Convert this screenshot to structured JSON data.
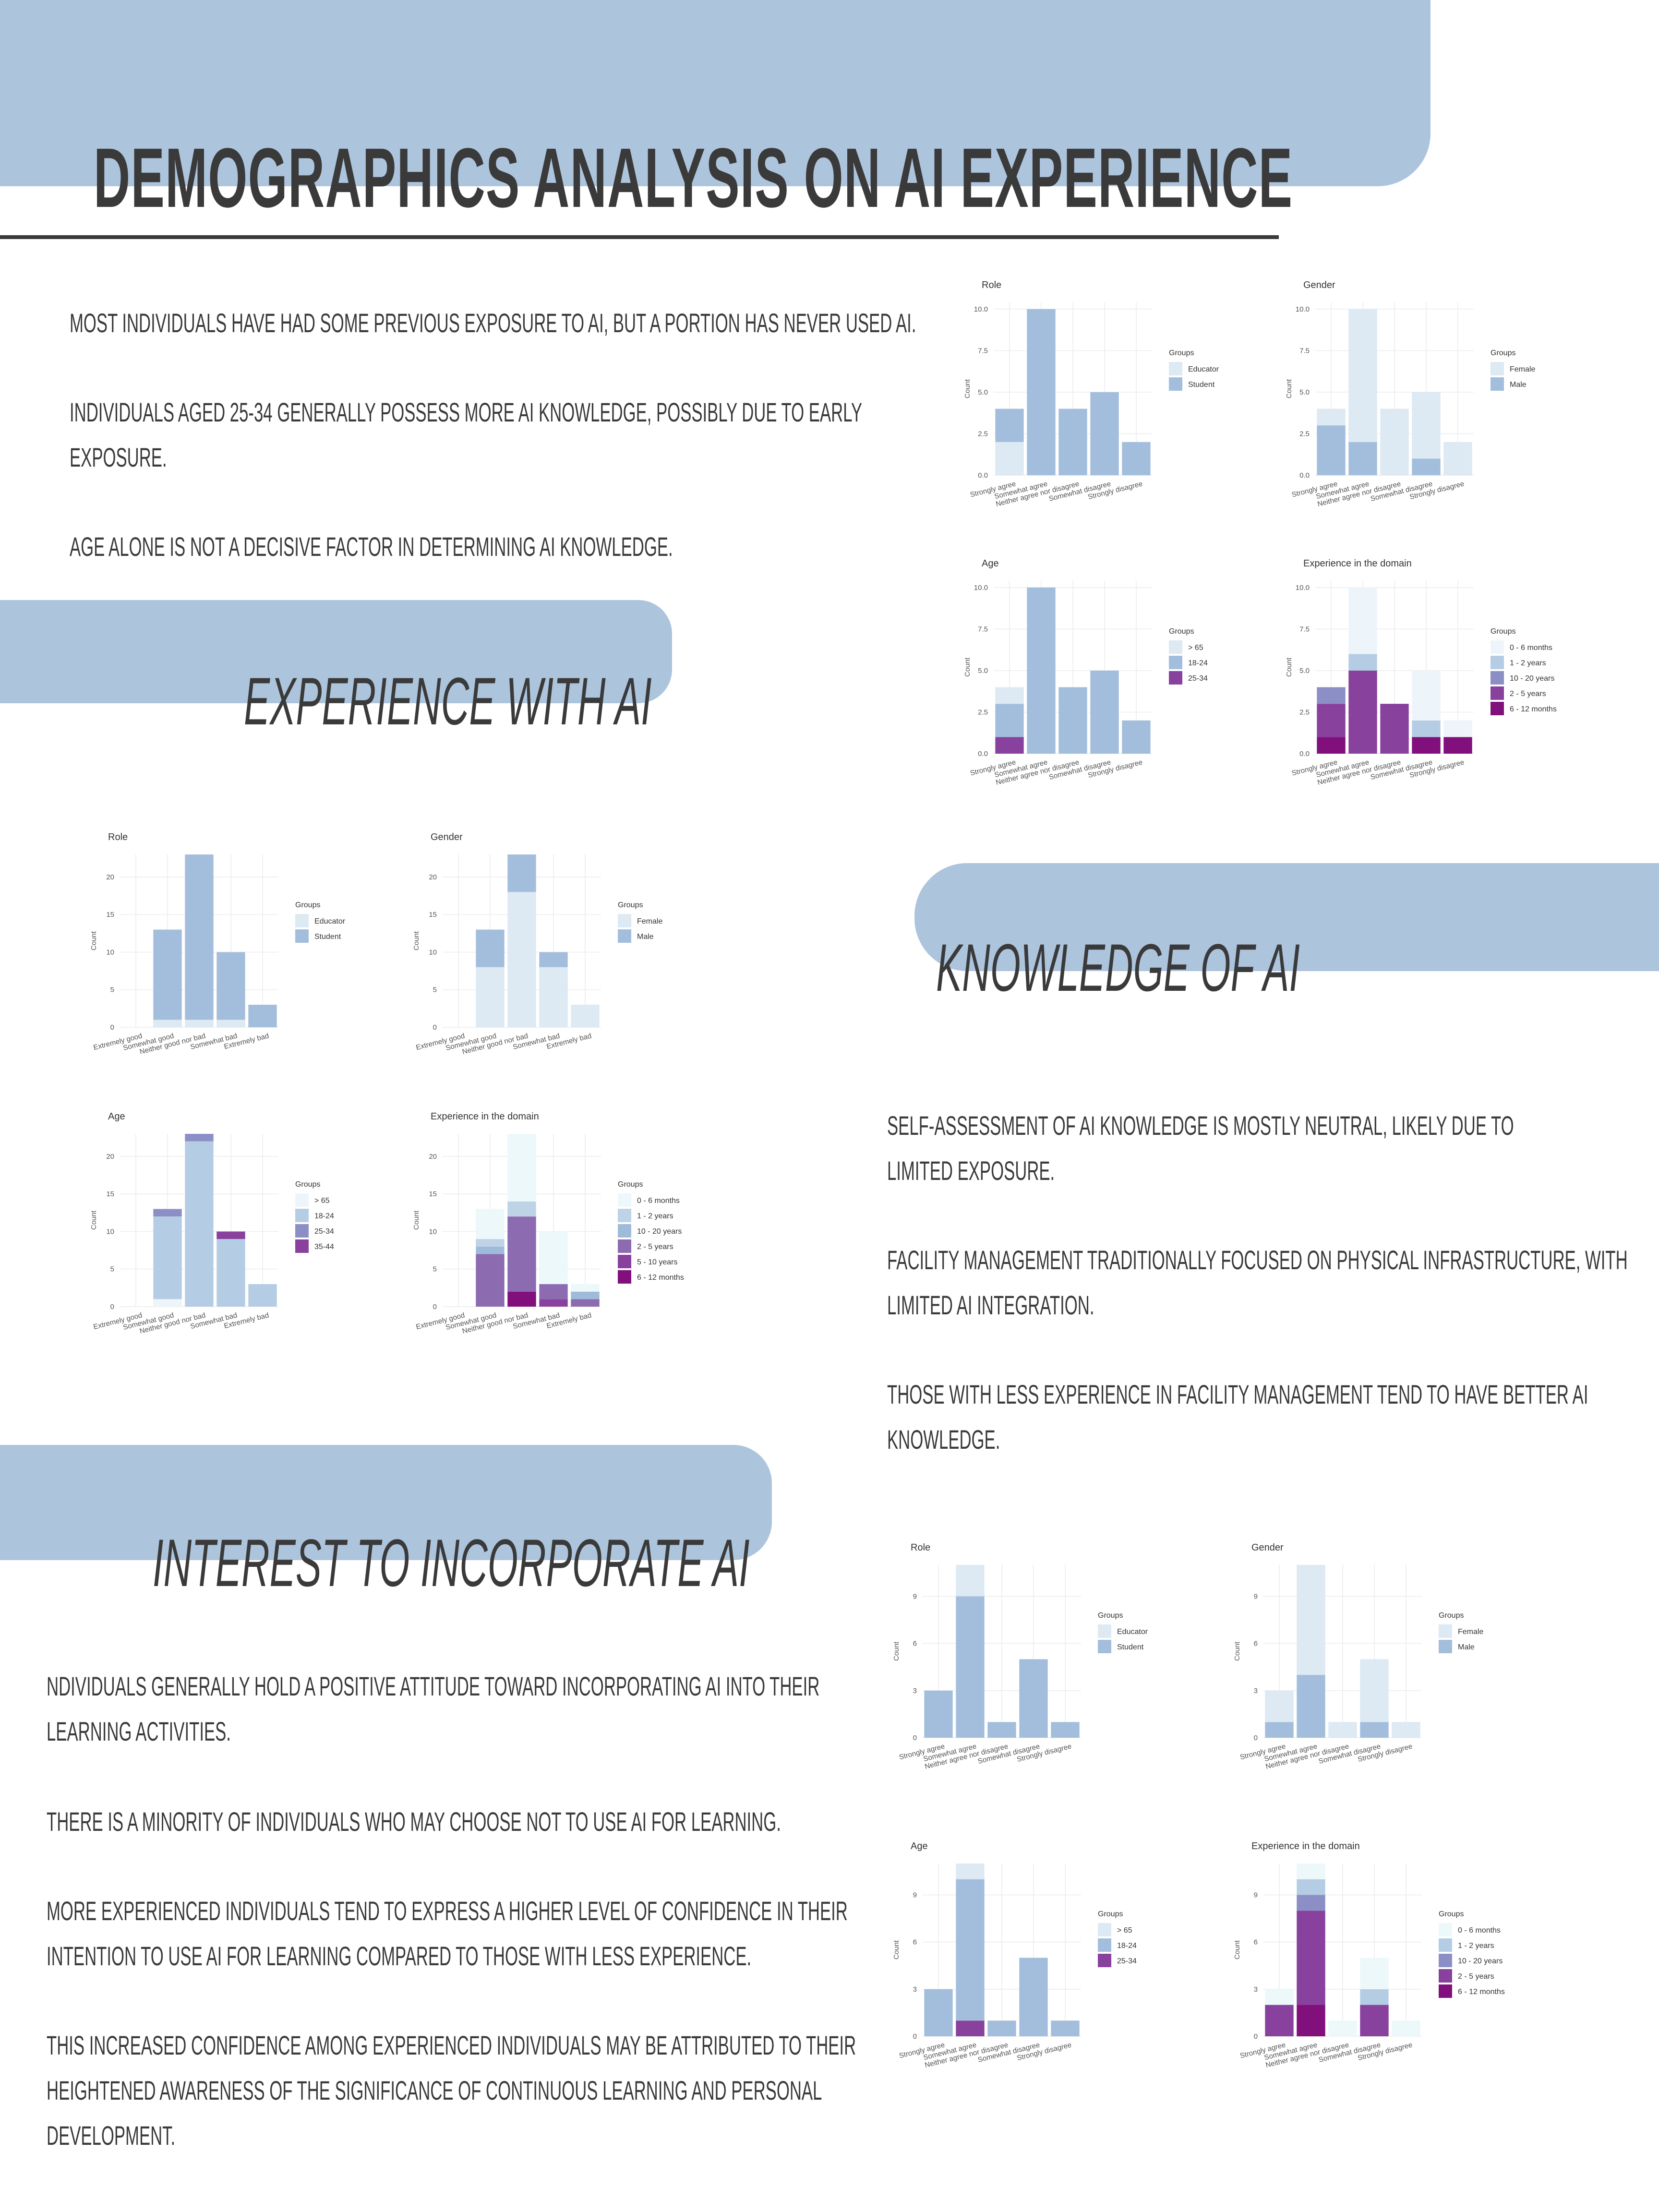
{
  "title": "Demographics Analysis on AI Experience",
  "intro": [
    "Most individuals have had some previous exposure to AI, but a portion has never used AI.",
    "Individuals aged 25-34 generally possess more AI knowledge, possibly due to early exposure.",
    "Age alone is not a decisive factor in determining AI knowledge."
  ],
  "sections": {
    "experience": "Experience with AI",
    "knowledge": "Knowledge of AI",
    "interest": "Interest to incorporate AI"
  },
  "knowledge_text": [
    "Self-assessment of AI knowledge is mostly neutral, likely due to limited exposure.",
    "Facility management traditionally focused on physical infrastructure, with limited AI integration.",
    "Those with less experience in facility management tend to have better AI knowledge."
  ],
  "interest_text": [
    "ndividuals generally hold a positive attitude toward incorporating AI into their learning activities.",
    "There is a minority of individuals who may choose not to use AI for learning.",
    "More experienced individuals tend to express a higher level of confidence in their intention to use AI for learning compared to those with less experience.",
    "This increased confidence among experienced individuals may be attributed to their heightened awareness of the significance of continuous learning and personal development."
  ],
  "colors": {
    "band": "#adc4dd",
    "text": "#3a3a3a"
  },
  "chart_data": [
    {
      "id": "exp_role",
      "type": "bar",
      "stacked": true,
      "title": "Role",
      "ylabel": "Count",
      "categories": [
        "Extremely good",
        "Somewhat good",
        "Neither good nor bad",
        "Somewhat bad",
        "Extremely bad"
      ],
      "ylim": [
        0,
        23
      ],
      "ticks": [
        0,
        5,
        10,
        15,
        20
      ],
      "legend_title": "Groups",
      "series": [
        {
          "name": "Educator",
          "color": "#dde9f3",
          "values": [
            0,
            1,
            1,
            1,
            0
          ]
        },
        {
          "name": "Student",
          "color": "#a3bedc",
          "values": [
            0,
            12,
            22,
            9,
            3
          ]
        }
      ]
    },
    {
      "id": "exp_gender",
      "type": "bar",
      "stacked": true,
      "title": "Gender",
      "ylabel": "Count",
      "categories": [
        "Extremely good",
        "Somewhat good",
        "Neither good nor bad",
        "Somewhat bad",
        "Extremely bad"
      ],
      "ylim": [
        0,
        23
      ],
      "ticks": [
        0,
        5,
        10,
        15,
        20
      ],
      "legend_title": "Groups",
      "series": [
        {
          "name": "Female",
          "color": "#dde9f3",
          "values": [
            0,
            8,
            18,
            8,
            3
          ]
        },
        {
          "name": "Male",
          "color": "#a3bedc",
          "values": [
            0,
            5,
            5,
            2,
            0
          ]
        }
      ]
    },
    {
      "id": "exp_age",
      "type": "bar",
      "stacked": true,
      "title": "Age",
      "ylabel": "Count",
      "categories": [
        "Extremely good",
        "Somewhat good",
        "Neither good nor bad",
        "Somewhat bad",
        "Extremely bad"
      ],
      "ylim": [
        0,
        23
      ],
      "ticks": [
        0,
        5,
        10,
        15,
        20
      ],
      "legend_title": "Groups",
      "series": [
        {
          "name": "> 65",
          "color": "#eef5fa",
          "values": [
            0,
            1,
            0,
            0,
            0
          ]
        },
        {
          "name": "18-24",
          "color": "#b5cde4",
          "values": [
            0,
            11,
            22,
            9,
            3
          ]
        },
        {
          "name": "25-34",
          "color": "#8c8fc6",
          "values": [
            0,
            1,
            1,
            0,
            0
          ]
        },
        {
          "name": "35-44",
          "color": "#88419d",
          "values": [
            0,
            0,
            0,
            1,
            0
          ]
        }
      ]
    },
    {
      "id": "exp_domain",
      "type": "bar",
      "stacked": true,
      "title": "Experience in the domain",
      "ylabel": "Count",
      "categories": [
        "Extremely good",
        "Somewhat good",
        "Neither good nor bad",
        "Somewhat bad",
        "Extremely bad"
      ],
      "ylim": [
        0,
        23
      ],
      "ticks": [
        0,
        5,
        10,
        15,
        20
      ],
      "legend_title": "Groups",
      "series": [
        {
          "name": "6 - 12 months",
          "color": "#810f7c",
          "values": [
            0,
            0,
            2,
            0,
            0
          ]
        },
        {
          "name": "5 - 10 years",
          "color": "#88419d",
          "values": [
            0,
            0,
            0,
            1,
            0
          ]
        },
        {
          "name": "2 - 5 years",
          "color": "#8c6bb1",
          "values": [
            0,
            7,
            10,
            2,
            1
          ]
        },
        {
          "name": "10 - 20 years",
          "color": "#9ebcda",
          "values": [
            0,
            1,
            0,
            0,
            1
          ]
        },
        {
          "name": "1 - 2 years",
          "color": "#bfd3e6",
          "values": [
            0,
            1,
            2,
            0,
            0
          ]
        },
        {
          "name": "0 - 6 months",
          "color": "#edf8fb",
          "values": [
            0,
            4,
            9,
            7,
            1
          ]
        }
      ],
      "legend_order": [
        "0 - 6 months",
        "1 - 2 years",
        "10 - 20 years",
        "2 - 5 years",
        "5 - 10 years",
        "6 - 12 months"
      ]
    },
    {
      "id": "top_role",
      "type": "bar",
      "stacked": true,
      "title": "Role",
      "ylabel": "Count",
      "categories": [
        "Strongly agree",
        "Somewhat agree",
        "Neither agree nor disagree",
        "Somewhat disagree",
        "Strongly disagree"
      ],
      "ylim": [
        0,
        10.4
      ],
      "ticks": [
        0.0,
        2.5,
        5.0,
        7.5,
        10.0
      ],
      "tick_decimals": 1,
      "legend_title": "Groups",
      "series": [
        {
          "name": "Educator",
          "color": "#dde9f3",
          "values": [
            2,
            0,
            0,
            0,
            0
          ]
        },
        {
          "name": "Student",
          "color": "#a3bedc",
          "values": [
            2,
            10,
            4,
            5,
            2
          ]
        }
      ],
      "legend_order": [
        "Educator",
        "Student"
      ]
    },
    {
      "id": "top_gender",
      "type": "bar",
      "stacked": true,
      "title": "Gender",
      "ylabel": "Count",
      "categories": [
        "Strongly agree",
        "Somewhat agree",
        "Neither agree nor disagree",
        "Somewhat disagree",
        "Strongly disagree"
      ],
      "ylim": [
        0,
        10.4
      ],
      "ticks": [
        0.0,
        2.5,
        5.0,
        7.5,
        10.0
      ],
      "tick_decimals": 1,
      "legend_title": "Groups",
      "series": [
        {
          "name": "Male",
          "color": "#a3bedc",
          "values": [
            3,
            2,
            0,
            1,
            0
          ]
        },
        {
          "name": "Female",
          "color": "#dde9f3",
          "values": [
            1,
            8,
            4,
            4,
            2
          ]
        }
      ],
      "legend_order": [
        "Female",
        "Male"
      ]
    },
    {
      "id": "top_age",
      "type": "bar",
      "stacked": true,
      "title": "Age",
      "ylabel": "Count",
      "categories": [
        "Strongly agree",
        "Somewhat agree",
        "Neither agree nor disagree",
        "Somewhat disagree",
        "Strongly disagree"
      ],
      "ylim": [
        0,
        10.4
      ],
      "ticks": [
        0.0,
        2.5,
        5.0,
        7.5,
        10.0
      ],
      "tick_decimals": 1,
      "legend_title": "Groups",
      "series": [
        {
          "name": "25-34",
          "color": "#88419d",
          "values": [
            1,
            0,
            0,
            0,
            0
          ]
        },
        {
          "name": "18-24",
          "color": "#a3bedc",
          "values": [
            2,
            10,
            4,
            5,
            2
          ]
        },
        {
          "name": "> 65",
          "color": "#dde9f3",
          "values": [
            1,
            0,
            0,
            0,
            0
          ]
        }
      ],
      "legend_order": [
        "> 65",
        "18-24",
        "25-34"
      ]
    },
    {
      "id": "top_domain",
      "type": "bar",
      "stacked": true,
      "title": "Experience in the domain",
      "ylabel": "Count",
      "categories": [
        "Strongly agree",
        "Somewhat agree",
        "Neither agree nor disagree",
        "Somewhat disagree",
        "Strongly disagree"
      ],
      "ylim": [
        0,
        10.4
      ],
      "ticks": [
        0.0,
        2.5,
        5.0,
        7.5,
        10.0
      ],
      "tick_decimals": 1,
      "legend_title": "Groups",
      "series": [
        {
          "name": "6 - 12 months",
          "color": "#810f7c",
          "values": [
            1,
            0,
            0,
            1,
            1
          ]
        },
        {
          "name": "2 - 5 years",
          "color": "#88419d",
          "values": [
            2,
            5,
            3,
            0,
            0
          ]
        },
        {
          "name": "10 - 20 years",
          "color": "#8c8fc6",
          "values": [
            1,
            0,
            0,
            0,
            0
          ]
        },
        {
          "name": "1 - 2 years",
          "color": "#b5cde4",
          "values": [
            0,
            1,
            0,
            1,
            0
          ]
        },
        {
          "name": "0 - 6 months",
          "color": "#eef5fa",
          "values": [
            0,
            4,
            0,
            3,
            1
          ]
        }
      ],
      "legend_order": [
        "0 - 6 months",
        "1 - 2 years",
        "10 - 20 years",
        "2 - 5 years",
        "6 - 12 months"
      ]
    },
    {
      "id": "int_role",
      "type": "bar",
      "stacked": true,
      "title": "Role",
      "ylabel": "Count",
      "categories": [
        "Strongly agree",
        "Somewhat agree",
        "Neither agree nor disagree",
        "Somewhat disagree",
        "Strongly disagree"
      ],
      "ylim": [
        0,
        11
      ],
      "ticks": [
        0,
        3,
        6,
        9
      ],
      "legend_title": "Groups",
      "series": [
        {
          "name": "Student",
          "color": "#a3bedc",
          "values": [
            3,
            9,
            1,
            5,
            1
          ]
        },
        {
          "name": "Educator",
          "color": "#dde9f3",
          "values": [
            0,
            2,
            0,
            0,
            0
          ]
        }
      ],
      "legend_order": [
        "Educator",
        "Student"
      ]
    },
    {
      "id": "int_gender",
      "type": "bar",
      "stacked": true,
      "title": "Gender",
      "ylabel": "Count",
      "categories": [
        "Strongly agree",
        "Somewhat agree",
        "Neither agree nor disagree",
        "Somewhat disagree",
        "Strongly disagree"
      ],
      "ylim": [
        0,
        11
      ],
      "ticks": [
        0,
        3,
        6,
        9
      ],
      "legend_title": "Groups",
      "series": [
        {
          "name": "Male",
          "color": "#a3bedc",
          "values": [
            1,
            4,
            0,
            1,
            0
          ]
        },
        {
          "name": "Female",
          "color": "#dde9f3",
          "values": [
            2,
            7,
            1,
            4,
            1
          ]
        }
      ],
      "legend_order": [
        "Female",
        "Male"
      ]
    },
    {
      "id": "int_age",
      "type": "bar",
      "stacked": true,
      "title": "Age",
      "ylabel": "Count",
      "categories": [
        "Strongly agree",
        "Somewhat agree",
        "Neither agree nor disagree",
        "Somewhat disagree",
        "Strongly disagree"
      ],
      "ylim": [
        0,
        11
      ],
      "ticks": [
        0,
        3,
        6,
        9
      ],
      "legend_title": "Groups",
      "series": [
        {
          "name": "25-34",
          "color": "#88419d",
          "values": [
            0,
            1,
            0,
            0,
            0
          ]
        },
        {
          "name": "18-24",
          "color": "#a3bedc",
          "values": [
            3,
            9,
            1,
            5,
            1
          ]
        },
        {
          "name": "> 65",
          "color": "#dde9f3",
          "values": [
            0,
            1,
            0,
            0,
            0
          ]
        }
      ],
      "legend_order": [
        "> 65",
        "18-24",
        "25-34"
      ]
    },
    {
      "id": "int_domain",
      "type": "bar",
      "stacked": true,
      "title": "Experience in the domain",
      "ylabel": "Count",
      "categories": [
        "Strongly agree",
        "Somewhat agree",
        "Neither agree nor disagree",
        "Somewhat disagree",
        "Strongly disagree"
      ],
      "ylim": [
        0,
        11
      ],
      "ticks": [
        0,
        3,
        6,
        9
      ],
      "legend_title": "Groups",
      "series": [
        {
          "name": "6 - 12 months",
          "color": "#810f7c",
          "values": [
            0,
            2,
            0,
            0,
            0
          ]
        },
        {
          "name": "2 - 5 years",
          "color": "#88419d",
          "values": [
            2,
            6,
            0,
            2,
            0
          ]
        },
        {
          "name": "10 - 20 years",
          "color": "#8c8fc6",
          "values": [
            0,
            1,
            0,
            0,
            0
          ]
        },
        {
          "name": "1 - 2 years",
          "color": "#b5cde4",
          "values": [
            0,
            1,
            0,
            1,
            0
          ]
        },
        {
          "name": "0 - 6 months",
          "color": "#edf8fb",
          "values": [
            1,
            1,
            1,
            2,
            1
          ]
        }
      ],
      "legend_order": [
        "0 - 6 months",
        "1 - 2 years",
        "10 - 20 years",
        "2 - 5 years",
        "6 - 12 months"
      ]
    }
  ]
}
